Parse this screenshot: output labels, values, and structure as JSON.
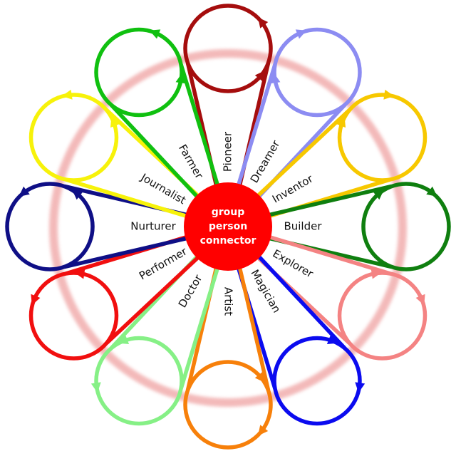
{
  "center": {
    "lines": [
      "group",
      "person",
      "connector"
    ],
    "color": "#ff0000"
  },
  "ring_color": "#f2b2b2",
  "petals": [
    {
      "label": "Pioneer",
      "color": "#a50d0d",
      "dir": "ccw"
    },
    {
      "label": "Dreamer",
      "color": "#8c8cf2",
      "dir": "cw"
    },
    {
      "label": "Inventor",
      "color": "#f7c800",
      "dir": "cw"
    },
    {
      "label": "Builder",
      "color": "#0f7f0f",
      "dir": "cw"
    },
    {
      "label": "Explorer",
      "color": "#f48383",
      "dir": "cw"
    },
    {
      "label": "Magician",
      "color": "#0b0bef",
      "dir": "cw"
    },
    {
      "label": "Artist",
      "color": "#f7800a",
      "dir": "cw"
    },
    {
      "label": "Doctor",
      "color": "#86f086",
      "dir": "ccw"
    },
    {
      "label": "Performer",
      "color": "#f10f0f",
      "dir": "ccw"
    },
    {
      "label": "Nurturer",
      "color": "#0f0f86",
      "dir": "ccw"
    },
    {
      "label": "Journalist",
      "color": "#f7f20a",
      "dir": "ccw"
    },
    {
      "label": "Farmer",
      "color": "#10c010",
      "dir": "ccw"
    }
  ]
}
